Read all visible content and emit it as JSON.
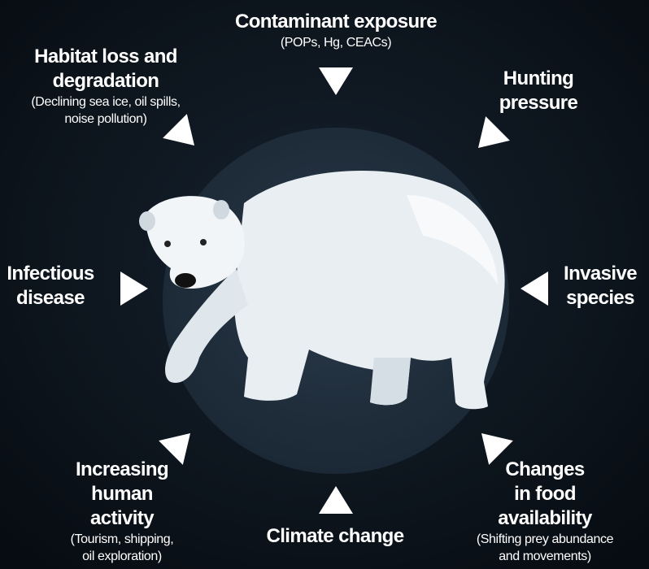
{
  "threats": [
    {
      "title": [
        "Contaminant exposure"
      ],
      "detail": [
        "(POPs, Hg, CEACs)"
      ]
    },
    {
      "title": [
        "Habitat loss and",
        "degradation"
      ],
      "detail": [
        "(Declining sea ice, oil spills,",
        "noise pollution)"
      ]
    },
    {
      "title": [
        "Hunting",
        "pressure"
      ]
    },
    {
      "title": [
        "Infectious",
        "disease"
      ]
    },
    {
      "title": [
        "Invasive",
        "species"
      ]
    },
    {
      "title": [
        "Increasing",
        "human",
        "activity"
      ],
      "detail": [
        "(Tourism, shipping,",
        "oil exploration)"
      ]
    },
    {
      "title": [
        "Climate change"
      ]
    },
    {
      "title": [
        "Changes",
        "in food",
        "availability"
      ],
      "detail": [
        "(Shifting prey abundance",
        "and movements)"
      ]
    }
  ]
}
